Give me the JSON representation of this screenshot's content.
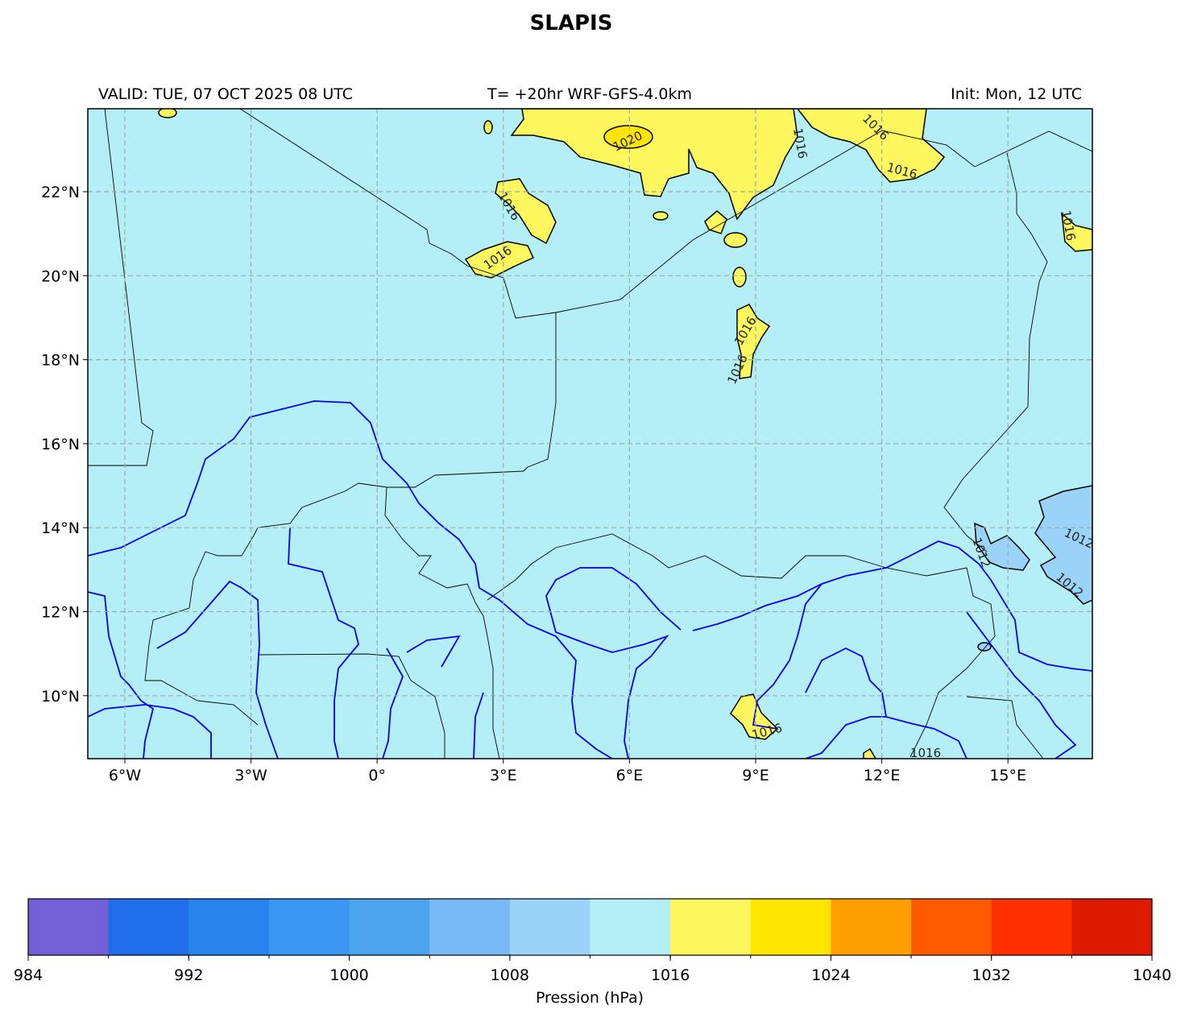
{
  "title": "SLAPIS",
  "header": {
    "valid": "VALID: TUE, 07 OCT 2025 08 UTC",
    "run": "T= +20hr WRF-GFS-4.0km",
    "init": "Init: Mon, 12 UTC"
  },
  "map": {
    "lon_ticks": [
      "6°W",
      "3°W",
      "0°",
      "3°E",
      "6°E",
      "9°E",
      "12°E",
      "15°E"
    ],
    "lat_ticks": [
      "22°N",
      "20°N",
      "18°N",
      "16°N",
      "14°N",
      "12°N",
      "10°N"
    ],
    "contour_labels": [
      "1020",
      "1016",
      "1016",
      "1016",
      "1016",
      "1016",
      "1016",
      "1016",
      "1016",
      "1016",
      "1016",
      "1012",
      "1012",
      "1012"
    ]
  },
  "colorbar": {
    "label": "Pression (hPa)",
    "ticks": [
      984,
      992,
      1000,
      1008,
      1016,
      1024,
      1032,
      1040
    ],
    "colors": [
      "#735fd8",
      "#1f6de8",
      "#2882ec",
      "#3b95f2",
      "#4ca3ee",
      "#78b9f6",
      "#9bd2f8",
      "#b4eff8",
      "#fff75e",
      "#ffe500",
      "#ffa000",
      "#ff5a00",
      "#ff3000",
      "#de1a00"
    ]
  }
}
